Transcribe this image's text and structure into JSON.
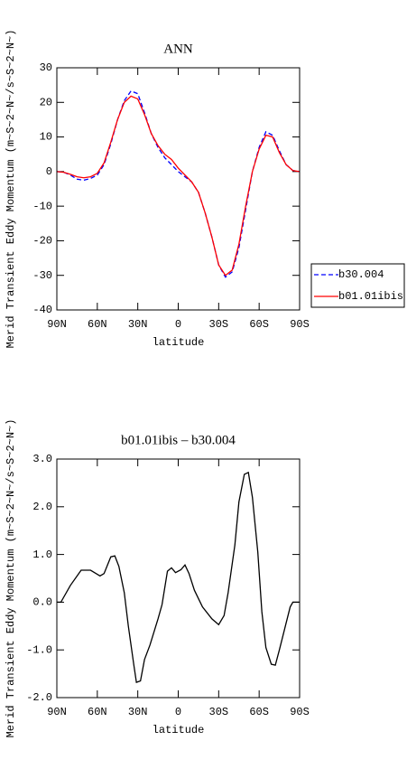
{
  "chart_data": [
    {
      "type": "line",
      "title": "ANN",
      "ylabel": "Merid Transient Eddy Momentum (m~S~2~N~/s~S~2~N~)",
      "xlabel": "latitude",
      "x": [
        90,
        85,
        80,
        75,
        70,
        65,
        60,
        55,
        50,
        45,
        40,
        35,
        30,
        25,
        20,
        15,
        10,
        5,
        0,
        -5,
        -10,
        -15,
        -20,
        -25,
        -30,
        -35,
        -40,
        -45,
        -50,
        -55,
        -60,
        -65,
        -70,
        -75,
        -80,
        -85,
        -90
      ],
      "series": [
        {
          "name": "b30.004",
          "color": "#0000ff",
          "dash": true,
          "values": [
            0,
            -0.2,
            -1,
            -2.2,
            -2.5,
            -2,
            -1,
            2,
            8,
            15,
            20.5,
            23.3,
            22.5,
            17,
            11,
            7,
            4,
            2,
            0,
            -1.5,
            -3,
            -6,
            -12,
            -19,
            -27,
            -30.5,
            -29,
            -22,
            -11,
            0,
            7,
            11.5,
            10.5,
            6,
            2,
            0.3,
            0
          ]
        },
        {
          "name": "b01.01ibis",
          "color": "#ff0000",
          "dash": false,
          "values": [
            0,
            -0.2,
            -0.8,
            -1.5,
            -1.8,
            -1.5,
            -0.5,
            2.5,
            8.5,
            15,
            20,
            21.8,
            21,
            16.5,
            11,
            7.5,
            5,
            3.5,
            1,
            -1,
            -3,
            -6,
            -12,
            -19,
            -27,
            -30,
            -28.5,
            -21,
            -10,
            0,
            6.5,
            10.5,
            10,
            5.5,
            2,
            0.3,
            0
          ]
        }
      ],
      "xlim": [
        90,
        -90
      ],
      "xticks": [
        {
          "value": 90,
          "label": "90N"
        },
        {
          "value": 60,
          "label": "60N"
        },
        {
          "value": 30,
          "label": "30N"
        },
        0,
        {
          "value": -30,
          "label": "30S"
        },
        {
          "value": -60,
          "label": "60S"
        },
        {
          "value": -90,
          "label": "90S"
        }
      ],
      "ylim": [
        -40,
        30
      ],
      "yticks": [
        -40,
        -30,
        -20,
        -10,
        0,
        10,
        20,
        30
      ],
      "legend": "right"
    },
    {
      "type": "line",
      "title": "b01.01ibis – b30.004",
      "ylabel": "Merid Transient Eddy Momentum (m~S~2~N~/s~S~2~N~)",
      "xlabel": "latitude",
      "x": [
        90,
        87,
        80,
        72,
        65,
        58,
        55,
        50,
        47,
        44,
        40,
        37,
        33,
        31,
        28,
        25,
        21,
        15,
        12,
        8,
        5,
        2,
        -2,
        -5,
        -8,
        -12,
        -18,
        -25,
        -30,
        -34,
        -37,
        -42,
        -45,
        -49,
        -52,
        -55,
        -59,
        -62,
        -65,
        -69,
        -72,
        -75,
        -79,
        -83,
        -85,
        -90
      ],
      "series": [
        {
          "name": null,
          "color": "#000000",
          "dash": false,
          "values": [
            0,
            0,
            0.35,
            0.67,
            0.67,
            0.55,
            0.6,
            0.95,
            0.97,
            0.75,
            0.2,
            -0.5,
            -1.3,
            -1.68,
            -1.65,
            -1.2,
            -0.9,
            -0.35,
            -0.05,
            0.65,
            0.72,
            0.62,
            0.68,
            0.78,
            0.6,
            0.25,
            -0.1,
            -0.35,
            -0.47,
            -0.28,
            0.2,
            1.2,
            2.1,
            2.68,
            2.72,
            2.2,
            1.05,
            -0.2,
            -0.95,
            -1.3,
            -1.32,
            -1,
            -0.55,
            -0.1,
            0,
            0
          ]
        }
      ],
      "xlim": [
        90,
        -90
      ],
      "xticks": [
        {
          "value": 90,
          "label": "90N"
        },
        {
          "value": 60,
          "label": "60N"
        },
        {
          "value": 30,
          "label": "30N"
        },
        0,
        {
          "value": -30,
          "label": "30S"
        },
        {
          "value": -60,
          "label": "60S"
        },
        {
          "value": -90,
          "label": "90S"
        }
      ],
      "ylim": [
        -2,
        3
      ],
      "yticks": [
        {
          "value": -2,
          "label": "-2.0"
        },
        {
          "value": -1,
          "label": "-1.0"
        },
        {
          "value": 0,
          "label": "0.0"
        },
        {
          "value": 1,
          "label": "1.0"
        },
        {
          "value": 2,
          "label": "2.0"
        },
        {
          "value": 3,
          "label": "3.0"
        }
      ]
    }
  ]
}
